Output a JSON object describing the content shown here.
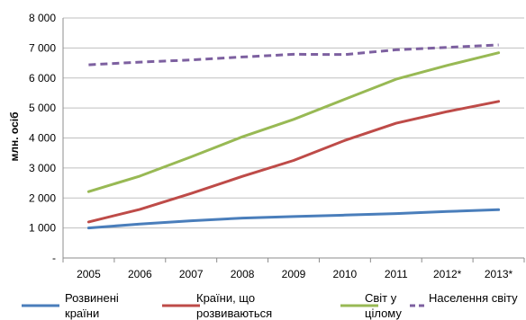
{
  "chart_data": {
    "type": "line",
    "ylabel": "млн. осіб",
    "x": [
      "2005",
      "2006",
      "2007",
      "2008",
      "2009",
      "2010",
      "2011",
      "2012*",
      "2013*"
    ],
    "y_ticks": [
      "-",
      "1 000",
      "2 000",
      "3 000",
      "4 000",
      "5 000",
      "6 000",
      "7 000",
      "8 000"
    ],
    "ylim": [
      0,
      8000
    ],
    "grid": "horizontal",
    "legend_position": "bottom",
    "series": [
      {
        "name": "Розвинені країни",
        "color": "#4a7ebb",
        "style": "solid",
        "values": [
          1000,
          1130,
          1240,
          1330,
          1380,
          1430,
          1480,
          1550,
          1610
        ]
      },
      {
        "name": "Країни, що розвиваються",
        "color": "#be4b48",
        "style": "solid",
        "values": [
          1200,
          1620,
          2150,
          2720,
          3250,
          3920,
          4490,
          4880,
          5220
        ]
      },
      {
        "name": "Світ у цілому",
        "color": "#98b954",
        "style": "solid",
        "values": [
          2210,
          2730,
          3370,
          4040,
          4620,
          5290,
          5960,
          6420,
          6840
        ]
      },
      {
        "name": "Населення світу",
        "color": "#7d60a0",
        "style": "dashed",
        "values": [
          6440,
          6530,
          6600,
          6700,
          6790,
          6780,
          6940,
          7020,
          7100
        ]
      }
    ],
    "legend": [
      {
        "line1": "Розвинені",
        "line2": "країни"
      },
      {
        "line1": "Країни, що",
        "line2": "розвиваються"
      },
      {
        "line1": "Світ у",
        "line2": "цілому"
      },
      {
        "line1": "Населення світу",
        "line2": ""
      }
    ]
  }
}
